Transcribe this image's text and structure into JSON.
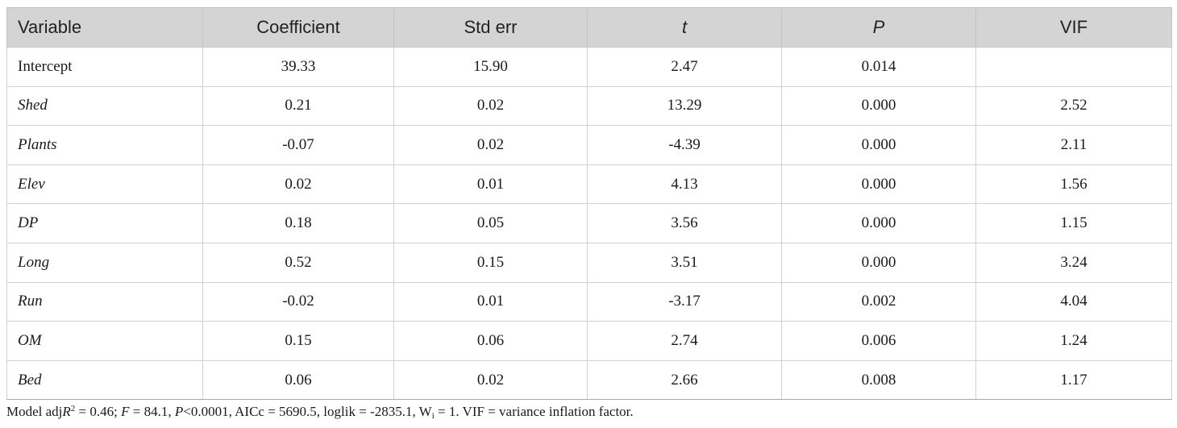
{
  "table": {
    "headers": [
      {
        "label": "Variable",
        "italic": false
      },
      {
        "label": "Coefficient",
        "italic": false
      },
      {
        "label": "Std err",
        "italic": false
      },
      {
        "label": "t",
        "italic": true
      },
      {
        "label": "P",
        "italic": true
      },
      {
        "label": "VIF",
        "italic": false
      }
    ],
    "rows": [
      {
        "variable": "Intercept",
        "italic": false,
        "coefficient": "39.33",
        "std_err": "15.90",
        "t": "2.47",
        "p": "0.014",
        "vif": ""
      },
      {
        "variable": "Shed",
        "italic": true,
        "coefficient": "0.21",
        "std_err": "0.02",
        "t": "13.29",
        "p": "0.000",
        "vif": "2.52"
      },
      {
        "variable": "Plants",
        "italic": true,
        "coefficient": "-0.07",
        "std_err": "0.02",
        "t": "-4.39",
        "p": "0.000",
        "vif": "2.11"
      },
      {
        "variable": "Elev",
        "italic": true,
        "coefficient": "0.02",
        "std_err": "0.01",
        "t": "4.13",
        "p": "0.000",
        "vif": "1.56"
      },
      {
        "variable": "DP",
        "italic": true,
        "coefficient": "0.18",
        "std_err": "0.05",
        "t": "3.56",
        "p": "0.000",
        "vif": "1.15"
      },
      {
        "variable": "Long",
        "italic": true,
        "coefficient": "0.52",
        "std_err": "0.15",
        "t": "3.51",
        "p": "0.000",
        "vif": "3.24"
      },
      {
        "variable": "Run",
        "italic": true,
        "coefficient": "-0.02",
        "std_err": "0.01",
        "t": "-3.17",
        "p": "0.002",
        "vif": "4.04"
      },
      {
        "variable": "OM",
        "italic": true,
        "coefficient": "0.15",
        "std_err": "0.06",
        "t": "2.74",
        "p": "0.006",
        "vif": "1.24"
      },
      {
        "variable": "Bed",
        "italic": true,
        "coefficient": "0.06",
        "std_err": "0.02",
        "t": "2.66",
        "p": "0.008",
        "vif": "1.17"
      }
    ]
  },
  "footnote": {
    "model_prefix": "Model adj",
    "r_symbol": "R",
    "r_sup": "2",
    "r_value": " = 0.46; ",
    "f_symbol": "F",
    "f_value": " = 84.1, ",
    "p_symbol": "P",
    "p_value": "<0.0001, AICc = 5690.5, loglik = -2835.1, W",
    "w_sub": "i",
    "suffix": " = 1. VIF = variance inflation factor."
  }
}
